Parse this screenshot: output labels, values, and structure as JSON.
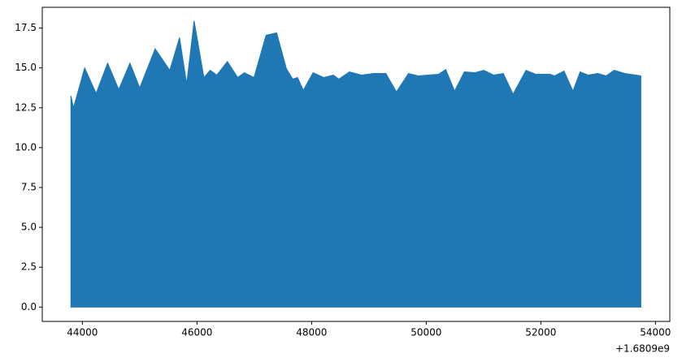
{
  "chart_data": {
    "type": "area",
    "color": "#1f77b4",
    "x": [
      43800,
      43845,
      44040,
      44240,
      44440,
      44635,
      44830,
      45000,
      45270,
      45525,
      45695,
      45820,
      45950,
      46120,
      46230,
      46345,
      46530,
      46710,
      46825,
      46995,
      47205,
      47390,
      47560,
      47670,
      47755,
      47855,
      48025,
      48210,
      48380,
      48475,
      48660,
      48870,
      49085,
      49295,
      49480,
      49690,
      49860,
      50215,
      50340,
      50495,
      50665,
      50850,
      51005,
      51175,
      51345,
      51515,
      51740,
      51910,
      52165,
      52235,
      52405,
      52560,
      52685,
      52825,
      52995,
      53140,
      53280,
      53465,
      53745
    ],
    "values": [
      13.25,
      12.5,
      15.0,
      13.4,
      15.3,
      13.65,
      15.3,
      13.75,
      16.2,
      14.85,
      16.9,
      14.0,
      17.95,
      14.4,
      14.85,
      14.55,
      15.4,
      14.4,
      14.7,
      14.4,
      17.05,
      17.2,
      14.95,
      14.3,
      14.4,
      13.6,
      14.7,
      14.4,
      14.55,
      14.3,
      14.75,
      14.55,
      14.65,
      14.65,
      13.5,
      14.65,
      14.5,
      14.6,
      14.9,
      13.55,
      14.75,
      14.7,
      14.85,
      14.55,
      14.65,
      13.35,
      14.85,
      14.6,
      14.6,
      14.5,
      14.8,
      13.55,
      14.75,
      14.55,
      14.65,
      14.5,
      14.85,
      14.65,
      14.5
    ],
    "xlim": [
      43300,
      54250
    ],
    "xticks": [
      44000,
      46000,
      48000,
      50000,
      52000,
      54000
    ],
    "x_offset_label": "+1.6809e9",
    "ylim": [
      -0.9,
      18.8
    ],
    "yticks": [
      {
        "value": 0,
        "label": "0.0"
      },
      2.5,
      {
        "value": 5,
        "label": "5.0"
      },
      7.5,
      {
        "value": 10,
        "label": "10.0"
      },
      12.5,
      {
        "value": 15,
        "label": "15.0"
      },
      17.5
    ]
  }
}
